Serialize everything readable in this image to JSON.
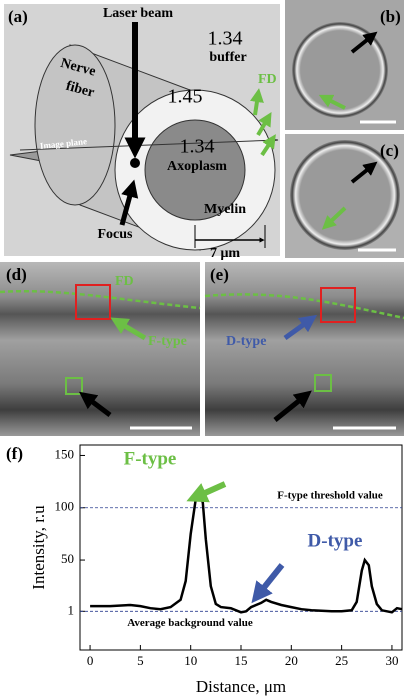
{
  "panels": {
    "a": "(a)",
    "b": "(b)",
    "c": "(c)",
    "d": "(d)",
    "e": "(e)",
    "f": "(f)"
  },
  "diagram": {
    "laser_beam": "Laser beam",
    "buffer_index": "1.34",
    "buffer": "buffer",
    "nerve_fiber": [
      "Nerve",
      "fiber"
    ],
    "myelin_index": "1.45",
    "axoplasm_index": "1.34",
    "axoplasm": "Axoplasm",
    "fd": "FD",
    "myelin": "Myelin",
    "image_plane": "Image plane",
    "focus": "Focus",
    "scale": "7 μm"
  },
  "image_d": {
    "fd": "FD",
    "label": "F-type"
  },
  "image_e": {
    "label": "D-type"
  },
  "chart_data": {
    "type": "line",
    "xlabel": "Distance, μm",
    "ylabel": "Intensity, r.u",
    "color": "#000000",
    "x": [
      0,
      2,
      4,
      5,
      6,
      7,
      8,
      9,
      9.5,
      10,
      10.5,
      10.8,
      11.2,
      11.5,
      12,
      12.5,
      13,
      14,
      15,
      15.5,
      16,
      17,
      17.5,
      18,
      19,
      20,
      21,
      22,
      24,
      25,
      26,
      26.5,
      27,
      27.3,
      27.7,
      28,
      28.5,
      29,
      30,
      30.5,
      31
    ],
    "values": [
      6,
      6,
      7,
      6,
      4,
      3,
      5,
      12,
      30,
      75,
      108,
      113,
      105,
      70,
      25,
      8,
      5,
      4,
      0,
      1,
      5,
      9,
      12,
      10,
      7,
      5,
      3,
      2,
      1,
      1,
      2,
      10,
      40,
      50,
      45,
      25,
      8,
      2,
      0,
      4,
      3
    ],
    "xlim": [
      -1,
      31
    ],
    "ylim": [
      -36,
      160
    ],
    "xticks": [
      0,
      5,
      10,
      15,
      20,
      25,
      30
    ],
    "yticks": [
      1,
      50,
      100,
      150
    ],
    "reference_lines": [
      {
        "value": 100,
        "label": "F-type threshold value"
      },
      {
        "value": 1,
        "label": "Average background value"
      }
    ],
    "annotations": [
      {
        "text": "F-type",
        "color": "#6cbf45"
      },
      {
        "text": "D-type",
        "color": "#3f5aa8"
      }
    ]
  }
}
